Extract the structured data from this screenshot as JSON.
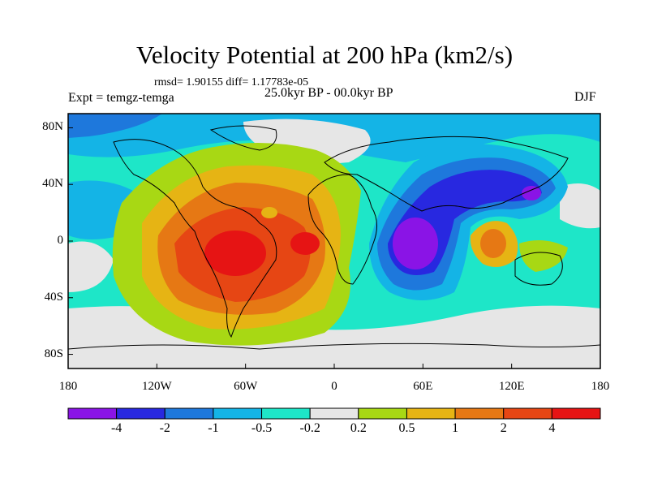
{
  "title": "Velocity Potential at 200 hPa (km2/s)",
  "stats": "rmsd= 1.90155 diff= 1.17783e-05",
  "period": "25.0kyr BP - 00.0kyr BP",
  "experiment": "Expt = temgz-temga",
  "season": "DJF",
  "axes": {
    "y_ticks": [
      {
        "label": "80N",
        "lat": 80
      },
      {
        "label": "40N",
        "lat": 40
      },
      {
        "label": "0",
        "lat": 0
      },
      {
        "label": "40S",
        "lat": -40
      },
      {
        "label": "80S",
        "lat": -80
      }
    ],
    "x_ticks": [
      {
        "label": "180",
        "lon": -180
      },
      {
        "label": "120W",
        "lon": -120
      },
      {
        "label": "60W",
        "lon": -60
      },
      {
        "label": "0",
        "lon": 0
      },
      {
        "label": "60E",
        "lon": 60
      },
      {
        "label": "120E",
        "lon": 120
      },
      {
        "label": "180",
        "lon": 180
      }
    ]
  },
  "colorbar": {
    "colors": [
      "#8a14e6",
      "#2828e0",
      "#1e78dc",
      "#14b4e6",
      "#1ee6c8",
      "#e6e6e6",
      "#a8d814",
      "#e6b414",
      "#e67814",
      "#e64614",
      "#e61414"
    ],
    "labels": [
      "-4",
      "-2",
      "-1",
      "-0.5",
      "-0.2",
      "0.2",
      "0.5",
      "1",
      "2",
      "4"
    ]
  },
  "field_regions": [
    {
      "name": "cyan-band-north",
      "level": "-0.5",
      "color": "#14b4e6"
    },
    {
      "name": "grey-zones",
      "level": "-0.2..0.2",
      "color": "#e6e6e6"
    },
    {
      "name": "yellow-green-west",
      "level": "0.2..0.5",
      "color": "#a8d814"
    },
    {
      "name": "americas-high",
      "level": "2..4",
      "color": "#e64614"
    },
    {
      "name": "indian-ocean-low",
      "level": "-4..-2",
      "color": "#2828e0"
    },
    {
      "name": "maritime-continent-high",
      "level": "1..2",
      "color": "#e67814"
    }
  ]
}
